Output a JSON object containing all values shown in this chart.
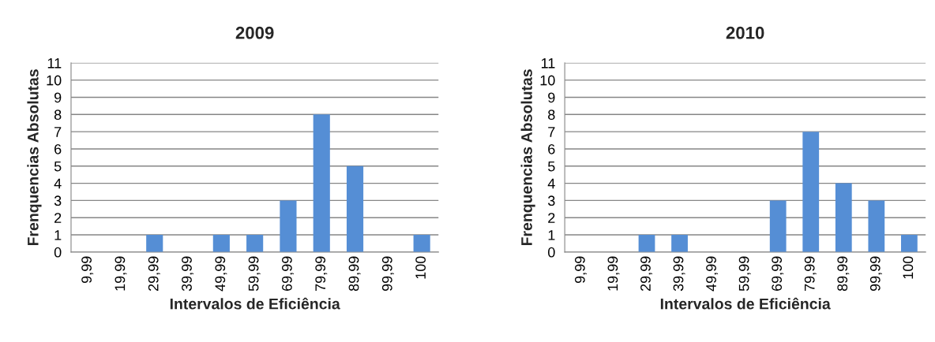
{
  "chart_data": [
    {
      "type": "bar",
      "title": "2009",
      "xlabel": "Intervalos de Eficiência",
      "ylabel": "Frenquencias Absolutas",
      "categories": [
        "9,99",
        "19,99",
        "29,99",
        "39,99",
        "49,99",
        "59,99",
        "69,99",
        "79,99",
        "89,99",
        "99,99",
        "100"
      ],
      "values": [
        0,
        0,
        1,
        0,
        1,
        1,
        3,
        8,
        5,
        0,
        1
      ],
      "color": "#558ed5",
      "ylim": [
        0,
        11
      ],
      "yticks": [
        0,
        1,
        2,
        3,
        4,
        5,
        6,
        7,
        8,
        9,
        10,
        11
      ],
      "grid": "y",
      "legend": false
    },
    {
      "type": "bar",
      "title": "2010",
      "xlabel": "Intervalos de Eficiência",
      "ylabel": "Frenquencias Absolutas",
      "categories": [
        "9,99",
        "19,99",
        "29,99",
        "39,99",
        "49,99",
        "59,99",
        "69,99",
        "79,99",
        "89,99",
        "99,99",
        "100"
      ],
      "values": [
        0,
        0,
        1,
        1,
        0,
        0,
        3,
        7,
        4,
        3,
        1
      ],
      "color": "#558ed5",
      "ylim": [
        0,
        11
      ],
      "yticks": [
        0,
        1,
        2,
        3,
        4,
        5,
        6,
        7,
        8,
        9,
        10,
        11
      ],
      "grid": "y",
      "legend": false
    }
  ]
}
